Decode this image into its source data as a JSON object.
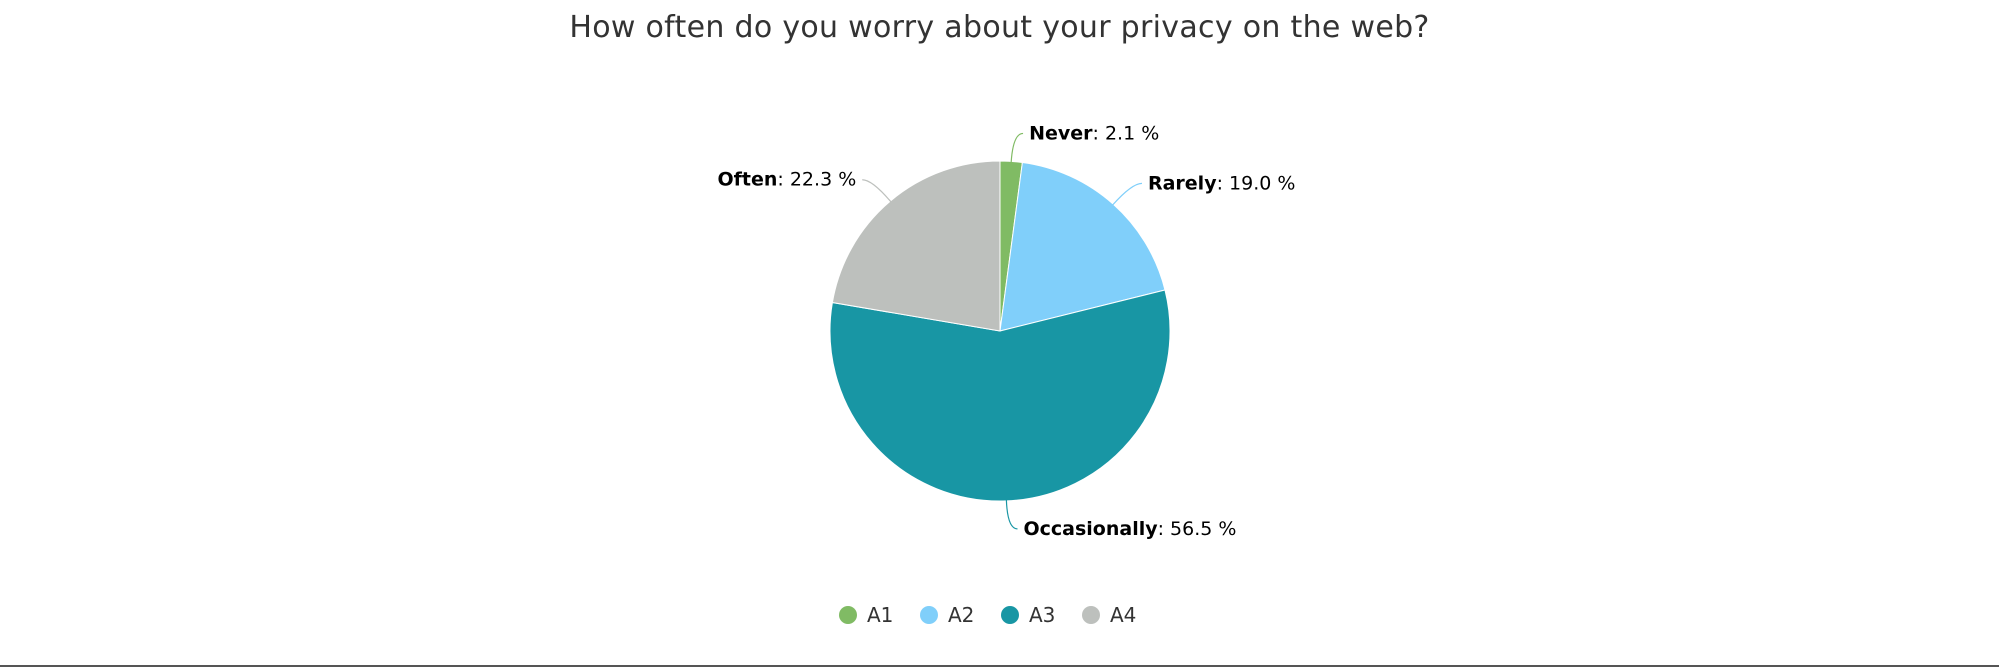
{
  "chart_data": {
    "type": "pie",
    "title": "How often do you worry about your privacy on the web?",
    "slices": [
      {
        "label": "Never",
        "value": 2.1,
        "display": "2.1 %",
        "legend": "A1",
        "color": "#80bb64"
      },
      {
        "label": "Rarely",
        "value": 19.0,
        "display": "19.0 %",
        "legend": "A2",
        "color": "#80cffa"
      },
      {
        "label": "Occasionally",
        "value": 56.5,
        "display": "56.5 %",
        "legend": "A3",
        "color": "#1896a4"
      },
      {
        "label": "Often",
        "value": 22.3,
        "display": "22.3 %",
        "legend": "A4",
        "color": "#bdc0bd"
      }
    ],
    "start_angle": "top",
    "direction": "clockwise",
    "legend_position": "bottom-center"
  }
}
